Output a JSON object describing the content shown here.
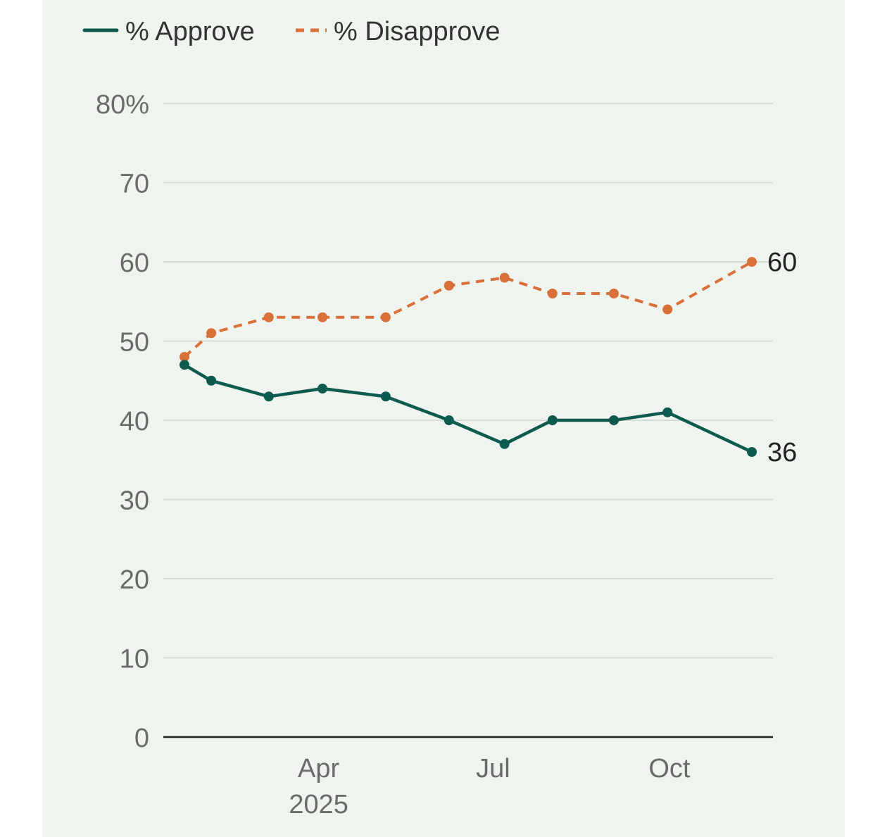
{
  "chart_data": {
    "type": "line",
    "title": "",
    "xlabel": "",
    "ylabel": "",
    "ylim": [
      0,
      80
    ],
    "y_ticks": [
      {
        "value": 80,
        "label": "80%"
      },
      {
        "value": 70,
        "label": "70"
      },
      {
        "value": 60,
        "label": "60"
      },
      {
        "value": 50,
        "label": "50"
      },
      {
        "value": 40,
        "label": "40"
      },
      {
        "value": 30,
        "label": "30"
      },
      {
        "value": 20,
        "label": "20"
      },
      {
        "value": 10,
        "label": "10"
      },
      {
        "value": 0,
        "label": "0"
      }
    ],
    "x_range": [
      "2025-01-01",
      "2025-12-31"
    ],
    "x_ticks": [
      {
        "date": "2025-04-01",
        "label": "Apr",
        "sublabel": "2025"
      },
      {
        "date": "2025-07-01",
        "label": "Jul",
        "sublabel": ""
      },
      {
        "date": "2025-10-01",
        "label": "Oct",
        "sublabel": ""
      }
    ],
    "x": [
      "2025-01-21",
      "2025-02-04",
      "2025-03-06",
      "2025-04-03",
      "2025-05-06",
      "2025-06-08",
      "2025-07-07",
      "2025-08-01",
      "2025-09-02",
      "2025-09-30",
      "2025-11-13"
    ],
    "series": [
      {
        "name": "% Approve",
        "color": "#0d5a4f",
        "dash": "solid",
        "values": [
          47,
          45,
          43,
          44,
          43,
          40,
          37,
          40,
          40,
          41,
          36
        ],
        "end_label": "36"
      },
      {
        "name": "% Disapprove",
        "color": "#d9703a",
        "dash": "dashed",
        "values": [
          48,
          51,
          53,
          53,
          53,
          57,
          58,
          56,
          56,
          54,
          60
        ],
        "end_label": "60"
      }
    ],
    "legend_position": "top-left",
    "grid": true
  }
}
